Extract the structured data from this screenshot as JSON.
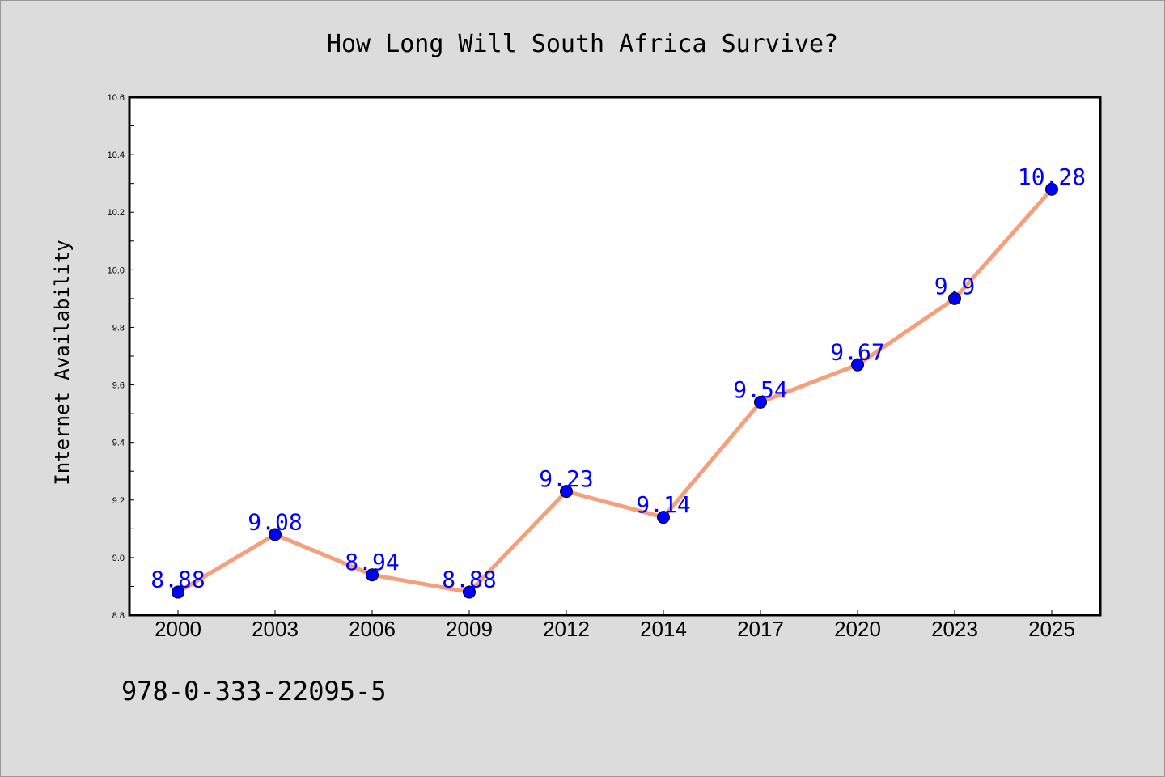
{
  "chart_data": {
    "type": "line",
    "title": "How Long Will South Africa Survive?",
    "xlabel": "",
    "ylabel": "Internet Availability",
    "categories": [
      "2000",
      "2003",
      "2006",
      "2009",
      "2012",
      "2014",
      "2017",
      "2020",
      "2023",
      "2025"
    ],
    "series": [
      {
        "values": [
          8.88,
          9.08,
          8.94,
          8.88,
          9.23,
          9.14,
          9.54,
          9.67,
          9.9,
          10.28
        ]
      }
    ],
    "data_labels": [
      "8.88",
      "9.08",
      "8.94",
      "8.88",
      "9.23",
      "9.14",
      "9.54",
      "9.67",
      "9.9",
      "10.28"
    ],
    "ylim": [
      8.8,
      10.6
    ],
    "yticks": [
      "8.8",
      "9.0",
      "9.2",
      "9.4",
      "9.6",
      "9.8",
      "10.0",
      "10.2",
      "10.4",
      "10.6"
    ],
    "grid": false,
    "line_color": "#f4a07c",
    "marker_color": "#0000ff",
    "label_color": "#0000ff"
  },
  "footer": {
    "isbn": "978-0-333-22095-5"
  }
}
